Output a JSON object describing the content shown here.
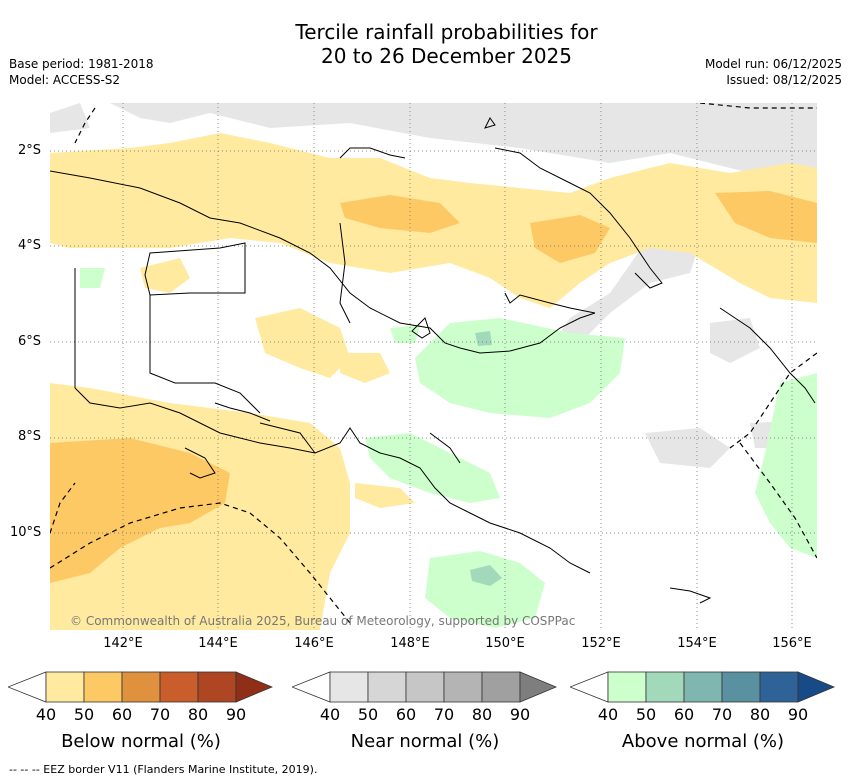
{
  "header": {
    "title_line1": "Tercile rainfall probabilities for",
    "title_line2": "20 to 26 December 2025",
    "base_period": "Base period: 1981-2018",
    "model": "Model: ACCESS-S2",
    "model_run": "Model run: 06/12/2025",
    "issued": "Issued: 08/12/2025"
  },
  "map": {
    "lat_ticks": [
      "2°S",
      "4°S",
      "6°S",
      "8°S",
      "10°S"
    ],
    "lon_ticks": [
      "142°E",
      "144°E",
      "146°E",
      "148°E",
      "150°E",
      "152°E",
      "154°E",
      "156°E"
    ],
    "copyright": "© Commonwealth of Australia 2025, Bureau of Meteorology, supported by COSPPac"
  },
  "legends": [
    {
      "title": "Below normal (%)",
      "values": [
        "40",
        "50",
        "60",
        "70",
        "80",
        "90"
      ],
      "colors": [
        "#ffffff",
        "#ffeaa0",
        "#fdc964",
        "#e0913e",
        "#c95e2c",
        "#ae4523",
        "#8f2f18"
      ]
    },
    {
      "title": "Near normal (%)",
      "values": [
        "40",
        "50",
        "60",
        "70",
        "80",
        "90"
      ],
      "colors": [
        "#ffffff",
        "#e6e6e6",
        "#d6d6d6",
        "#c6c6c6",
        "#b4b4b4",
        "#a0a0a0",
        "#7e7e7e"
      ]
    },
    {
      "title": "Above normal (%)",
      "values": [
        "40",
        "50",
        "60",
        "70",
        "80",
        "90"
      ],
      "colors": [
        "#ffffff",
        "#ccffcc",
        "#a3d9bb",
        "#7fb6b0",
        "#5a91a0",
        "#2f6398",
        "#174a86"
      ]
    }
  ],
  "footer": {
    "eez_note": "--  --  -- EEZ border V11 (Flanders Marine Institute, 2019)."
  }
}
